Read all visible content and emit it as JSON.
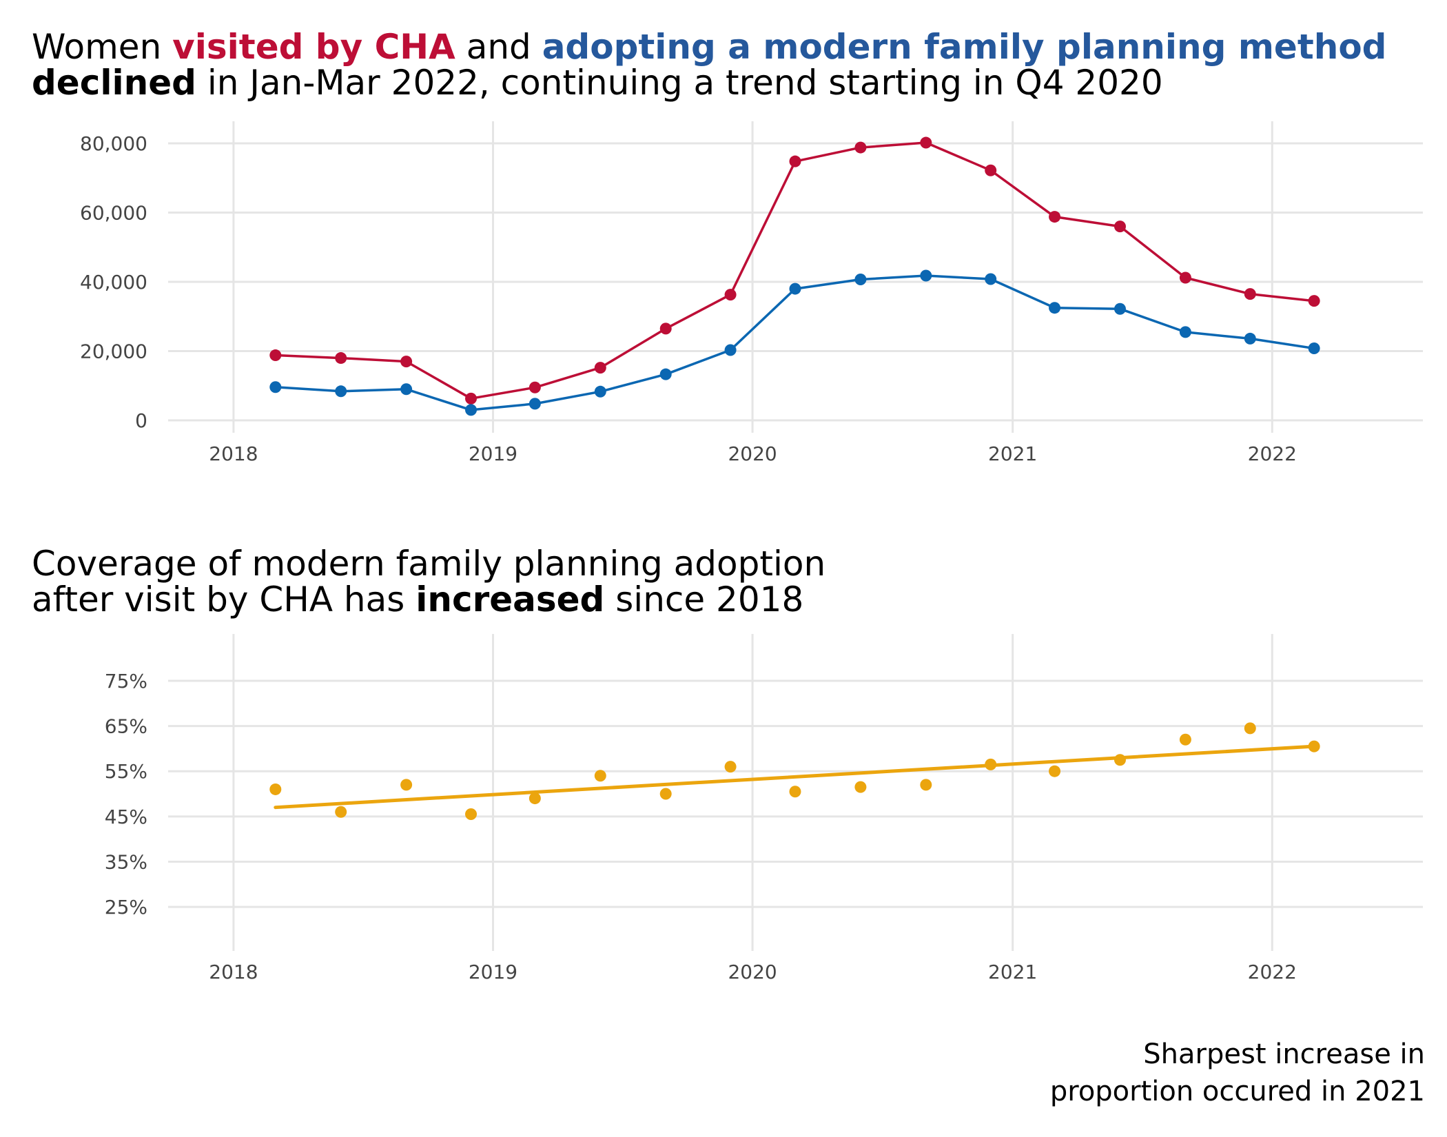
{
  "titles": {
    "top": {
      "p1": "Women ",
      "highlight_red": "visited by CHA",
      "p2": " and ",
      "highlight_blue": "adopting a modern family planning method",
      "bold": "declined",
      "p3": " in Jan-Mar 2022, continuing a trend starting in Q4 2020"
    },
    "bottom": {
      "line1": "Coverage of modern family planning adoption",
      "p1": "after visit by CHA has ",
      "bold": "increased",
      "p2": " since 2018"
    }
  },
  "caption": {
    "line1": "Sharpest increase in",
    "line2": "proportion occured in 2021"
  },
  "colors": {
    "visited": "#bd0e36",
    "adopting": "#0b67b2",
    "coverage": "#eba50e",
    "title_blue": "#25589c"
  },
  "chart_data": [
    {
      "type": "line",
      "x": [
        "2018-03-01",
        "2018-06-01",
        "2018-09-01",
        "2018-12-01",
        "2019-03-01",
        "2019-06-01",
        "2019-09-01",
        "2019-12-01",
        "2020-03-01",
        "2020-06-01",
        "2020-09-01",
        "2020-12-01",
        "2021-03-01",
        "2021-06-01",
        "2021-09-01",
        "2021-12-01",
        "2022-03-01"
      ],
      "series": [
        {
          "color": "#bd0e36",
          "values": [
            18800,
            18000,
            17000,
            6300,
            9500,
            15200,
            26500,
            36300,
            74800,
            78800,
            80200,
            72200,
            58800,
            56000,
            41200,
            36500,
            34500
          ]
        },
        {
          "color": "#0b67b2",
          "values": [
            9600,
            8400,
            9000,
            3000,
            4800,
            8300,
            13300,
            20300,
            38000,
            40700,
            41800,
            40800,
            32500,
            32200,
            25500,
            23600,
            20800
          ]
        }
      ],
      "xticks": [
        "2018",
        "2019",
        "2020",
        "2021",
        "2022"
      ],
      "yticks": [
        0,
        20000,
        40000,
        60000,
        80000
      ],
      "ytick_labels": [
        "0",
        "20,000",
        "40,000",
        "60,000",
        "80,000"
      ],
      "ylim": [
        0,
        82000
      ],
      "xlim": [
        "2017-10-01",
        "2022-08-01"
      ],
      "grid": true
    },
    {
      "type": "scatter",
      "x": [
        "2018-03-01",
        "2018-06-01",
        "2018-09-01",
        "2018-12-01",
        "2019-03-01",
        "2019-06-01",
        "2019-09-01",
        "2019-12-01",
        "2020-03-01",
        "2020-06-01",
        "2020-09-01",
        "2020-12-01",
        "2021-03-01",
        "2021-06-01",
        "2021-09-01",
        "2021-12-01",
        "2022-03-01"
      ],
      "series": [
        {
          "color": "#eba50e",
          "values": [
            51,
            46,
            52,
            45.5,
            49,
            54,
            50,
            56,
            50.5,
            51.5,
            52,
            56.5,
            55,
            57.5,
            62,
            64.5,
            60.5
          ]
        }
      ],
      "trend": {
        "type": "linear",
        "start": 47,
        "end": 60.5
      },
      "xticks": [
        "2018",
        "2019",
        "2020",
        "2021",
        "2022"
      ],
      "yticks": [
        25,
        35,
        45,
        55,
        65,
        75
      ],
      "ytick_labels": [
        "25%",
        "35%",
        "45%",
        "55%",
        "65%",
        "75%"
      ],
      "ylim": [
        18,
        82
      ],
      "xlim": [
        "2017-10-01",
        "2022-08-01"
      ],
      "grid": true
    }
  ]
}
